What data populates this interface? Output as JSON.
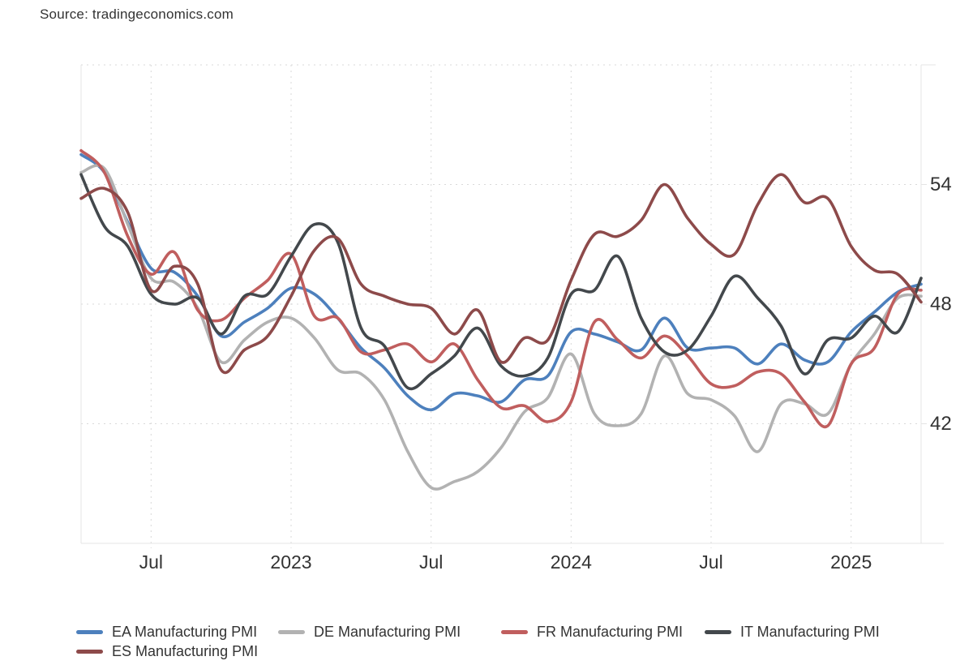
{
  "source_line": "Source: tradingeconomics.com",
  "chart_data": {
    "type": "line",
    "title": "",
    "source_text": "Source: tradingeconomics.com",
    "grid": "dotted",
    "legend_position": "bottom-left",
    "ylim": [
      36,
      60
    ],
    "y_ticks": [
      {
        "label": "54",
        "value": 54
      },
      {
        "label": "48",
        "value": 48
      },
      {
        "label": "42",
        "value": 42
      }
    ],
    "x_ticks": [
      {
        "label": "Jul",
        "index": 3
      },
      {
        "label": "2023",
        "index": 9
      },
      {
        "label": "Jul",
        "index": 15
      },
      {
        "label": "2024",
        "index": 21
      },
      {
        "label": "Jul",
        "index": 27
      },
      {
        "label": "2025",
        "index": 33
      }
    ],
    "x_labels": [
      "Apr 2022",
      "May 2022",
      "Jun 2022",
      "Jul 2022",
      "Aug 2022",
      "Sep 2022",
      "Oct 2022",
      "Nov 2022",
      "Dec 2022",
      "Jan 2023",
      "Feb 2023",
      "Mar 2023",
      "Apr 2023",
      "May 2023",
      "Jun 2023",
      "Jul 2023",
      "Aug 2023",
      "Sep 2023",
      "Oct 2023",
      "Nov 2023",
      "Dec 2023",
      "Jan 2024",
      "Feb 2024",
      "Mar 2024",
      "Apr 2024",
      "May 2024",
      "Jun 2024",
      "Jul 2024",
      "Aug 2024",
      "Sep 2024",
      "Oct 2024",
      "Nov 2024",
      "Dec 2024",
      "Jan 2025",
      "Feb 2025",
      "Mar 2025",
      "Apr 2025"
    ],
    "series": [
      {
        "id": "ea",
        "name": "EA Manufacturing PMI",
        "color": "#4d80bd",
        "values": [
          55.5,
          54.6,
          52.1,
          49.8,
          49.6,
          48.4,
          46.4,
          47.1,
          47.8,
          48.8,
          48.5,
          47.3,
          45.8,
          44.8,
          43.4,
          42.7,
          43.5,
          43.4,
          43.1,
          44.2,
          44.4,
          46.6,
          46.5,
          46.1,
          45.7,
          47.3,
          45.8,
          45.8,
          45.8,
          45.0,
          46.0,
          45.2,
          45.1,
          46.6,
          47.6,
          48.6,
          49.0
        ]
      },
      {
        "id": "de",
        "name": "DE Manufacturing PMI",
        "color": "#b2b2b2",
        "values": [
          54.6,
          54.8,
          52.0,
          49.3,
          49.1,
          47.8,
          45.1,
          46.2,
          47.1,
          47.3,
          46.3,
          44.7,
          44.5,
          43.2,
          40.6,
          38.8,
          39.1,
          39.6,
          40.8,
          42.6,
          43.3,
          45.5,
          42.5,
          41.9,
          42.5,
          45.4,
          43.5,
          43.2,
          42.4,
          40.6,
          43.0,
          43.0,
          42.5,
          45.0,
          46.5,
          48.3,
          48.4
        ]
      },
      {
        "id": "fr",
        "name": "FR Manufacturing PMI",
        "color": "#c05e5e",
        "values": [
          55.7,
          54.6,
          51.4,
          49.5,
          50.6,
          47.7,
          47.2,
          48.3,
          49.2,
          50.5,
          47.4,
          47.3,
          45.6,
          45.7,
          46.0,
          45.1,
          46.0,
          44.2,
          42.8,
          42.9,
          42.1,
          43.1,
          47.1,
          46.2,
          45.3,
          46.4,
          45.4,
          44.0,
          43.9,
          44.6,
          44.5,
          43.1,
          41.9,
          45.0,
          45.8,
          48.5,
          48.7
        ]
      },
      {
        "id": "it",
        "name": "IT Manufacturing PMI",
        "color": "#43484c",
        "values": [
          54.5,
          51.9,
          50.9,
          48.5,
          48.0,
          48.3,
          46.5,
          48.4,
          48.5,
          50.4,
          52.0,
          51.1,
          46.8,
          45.9,
          43.8,
          44.5,
          45.4,
          46.8,
          44.9,
          44.4,
          45.3,
          48.5,
          48.7,
          50.4,
          47.3,
          45.6,
          45.7,
          47.4,
          49.4,
          48.3,
          46.9,
          44.5,
          46.2,
          46.3,
          47.4,
          46.6,
          49.3
        ]
      },
      {
        "id": "es",
        "name": "ES Manufacturing PMI",
        "color": "#8d4a4a",
        "values": [
          53.3,
          53.8,
          52.6,
          48.7,
          49.9,
          49.0,
          44.7,
          45.7,
          46.4,
          48.4,
          50.7,
          51.3,
          49.0,
          48.4,
          48.0,
          47.8,
          46.5,
          47.7,
          45.1,
          46.3,
          46.2,
          49.2,
          51.5,
          51.4,
          52.2,
          54.0,
          52.3,
          51.0,
          50.5,
          53.0,
          54.5,
          53.1,
          53.3,
          50.9,
          49.7,
          49.5,
          48.1
        ]
      }
    ]
  }
}
